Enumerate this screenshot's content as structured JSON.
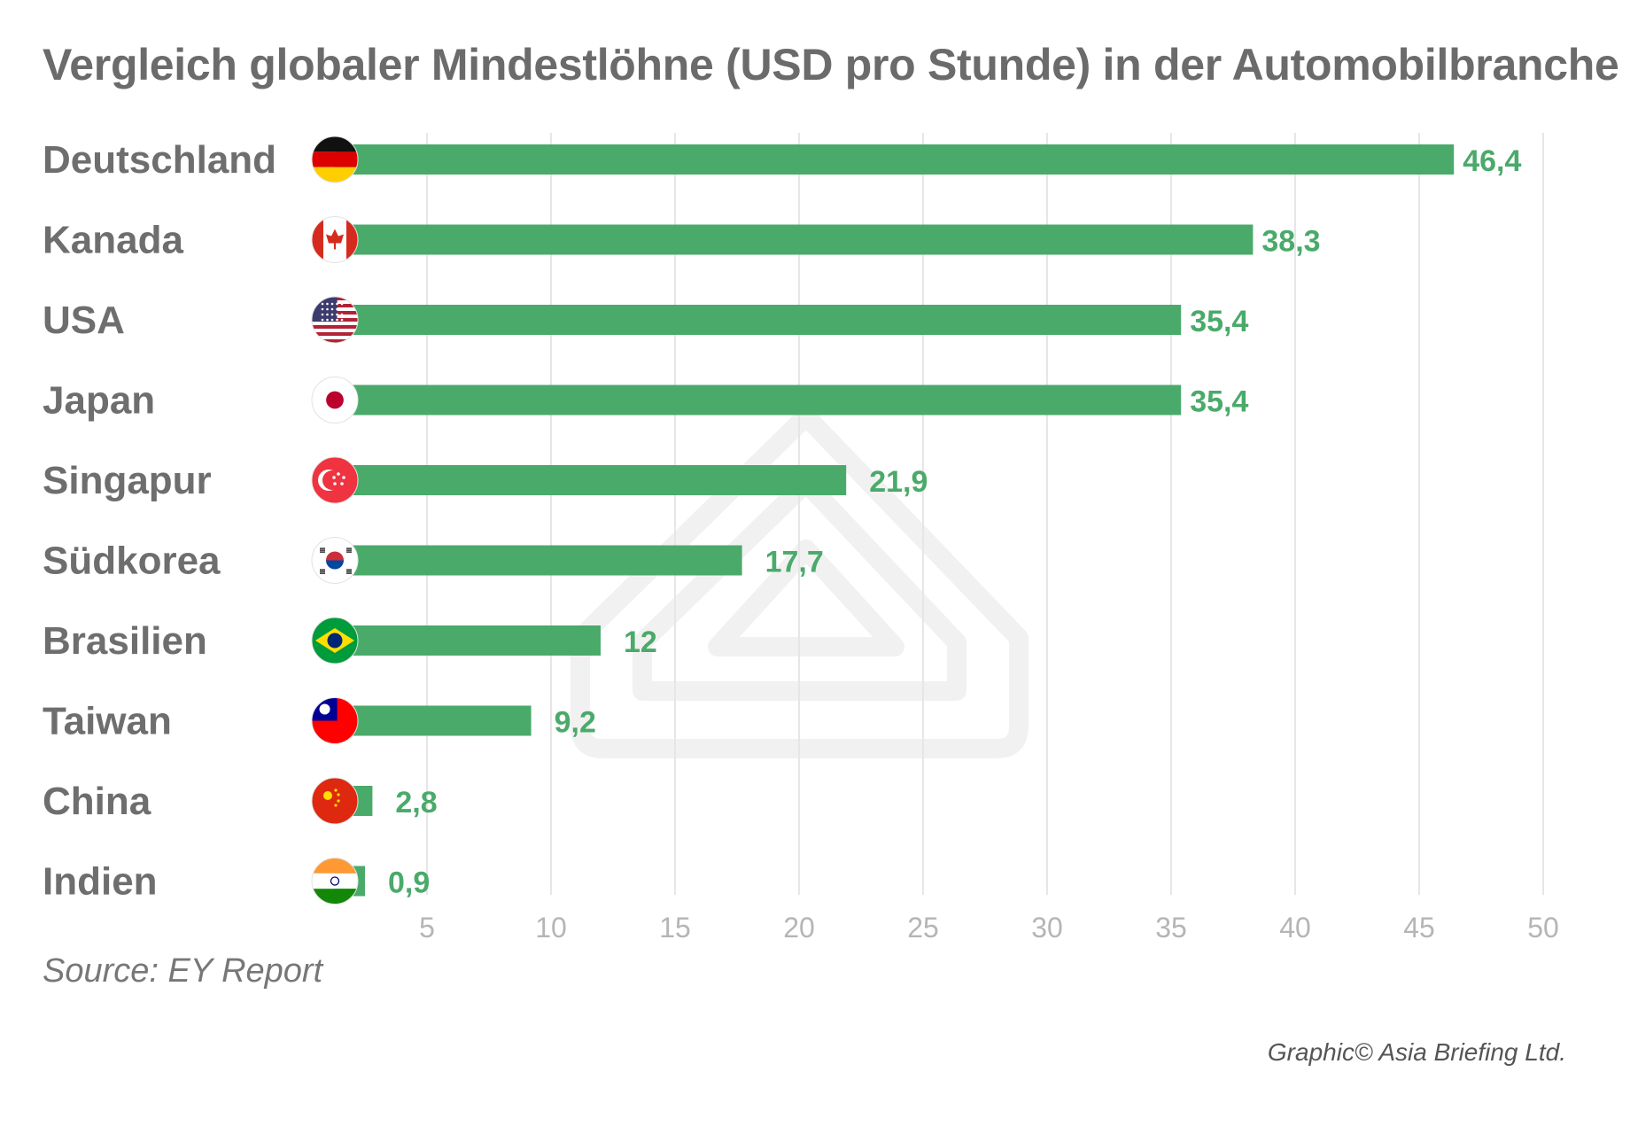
{
  "chart_data": {
    "type": "bar",
    "orientation": "horizontal",
    "title": "Vergleich globaler Mindestlöhne (USD pro Stunde) in der Automobilbranche",
    "categories": [
      "Deutschland",
      "Kanada",
      "USA",
      "Japan",
      "Singapur",
      "Südkorea",
      "Brasilien",
      "Taiwan",
      "China",
      "Indien"
    ],
    "values": [
      46.4,
      38.3,
      35.4,
      35.4,
      21.9,
      17.7,
      12,
      9.2,
      2.8,
      0.9
    ],
    "value_labels": [
      "46,4",
      "38,3",
      "35,4",
      "35,4",
      "21,9",
      "17,7",
      "12",
      "9,2",
      "2,8",
      "0,9"
    ],
    "flags": [
      "germany-flag",
      "canada-flag",
      "usa-flag",
      "japan-flag",
      "singapore-flag",
      "south-korea-flag",
      "brazil-flag",
      "taiwan-flag",
      "china-flag",
      "india-flag"
    ],
    "xlim": [
      0,
      50
    ],
    "xticks": [
      5,
      10,
      15,
      20,
      25,
      30,
      35,
      40,
      45,
      50
    ],
    "xlabel": "",
    "ylabel": "",
    "grid": true,
    "bar_color": "#4aaa6a",
    "label_color": "#4aaa6a"
  },
  "source": "Source: EY Report",
  "credit": "Graphic© Asia Briefing Ltd."
}
